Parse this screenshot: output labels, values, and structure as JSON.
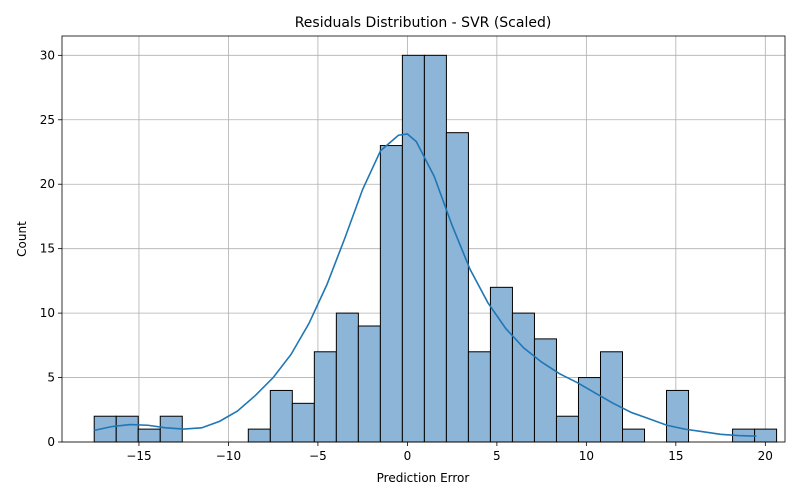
{
  "chart_data": {
    "type": "histogram",
    "title": "Residuals Distribution - SVR (Scaled)",
    "xlabel": "Prediction Error",
    "ylabel": "Count",
    "xlim": [
      -19.3,
      21.1
    ],
    "ylim": [
      0,
      31.5
    ],
    "xticks": [
      -15,
      -10,
      -5,
      0,
      5,
      10,
      15,
      20
    ],
    "yticks": [
      0,
      5,
      10,
      15,
      20,
      25,
      30
    ],
    "grid": true,
    "bar_color": "#1f77b4",
    "bin_start": -17.5,
    "bin_width": 1.23,
    "counts": [
      2,
      2,
      1,
      2,
      0,
      0,
      0,
      1,
      4,
      3,
      7,
      10,
      9,
      23,
      30,
      30,
      24,
      7,
      12,
      10,
      8,
      2,
      5,
      7,
      1,
      0,
      4,
      0,
      0,
      1,
      1
    ],
    "kde": {
      "x": [
        -17.5,
        -16.5,
        -15.5,
        -14.5,
        -13.5,
        -12.5,
        -11.5,
        -10.5,
        -9.5,
        -8.5,
        -7.5,
        -6.5,
        -5.5,
        -4.5,
        -3.5,
        -2.5,
        -1.5,
        -0.5,
        0.0,
        0.5,
        1.5,
        2.5,
        3.5,
        4.5,
        5.5,
        6.5,
        7.5,
        8.5,
        9.5,
        10.5,
        11.5,
        12.5,
        13.5,
        14.5,
        15.5,
        16.5,
        17.5,
        18.5,
        19.5
      ],
      "y": [
        0.9,
        1.2,
        1.35,
        1.3,
        1.1,
        1.0,
        1.1,
        1.6,
        2.4,
        3.6,
        5.0,
        6.8,
        9.2,
        12.2,
        15.8,
        19.6,
        22.6,
        23.8,
        23.9,
        23.3,
        20.6,
        16.8,
        13.4,
        10.8,
        8.8,
        7.3,
        6.2,
        5.3,
        4.6,
        3.8,
        3.0,
        2.3,
        1.8,
        1.3,
        1.0,
        0.8,
        0.6,
        0.5,
        0.45
      ]
    }
  }
}
